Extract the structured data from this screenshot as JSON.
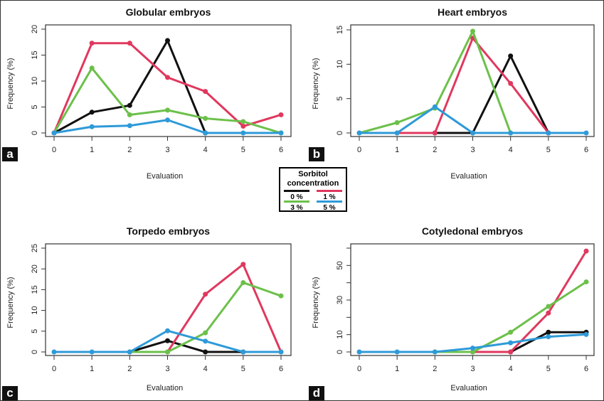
{
  "legend": {
    "title": "Sorbitol concentration",
    "items": [
      "0 %",
      "1 %",
      "3 %",
      "5 %"
    ]
  },
  "colors": {
    "0 %": "#111111",
    "1 %": "#e0385e",
    "3 %": "#6cc04a",
    "5 %": "#2e9ad8"
  },
  "chart_data": [
    {
      "type": "line",
      "panel": "a",
      "title": "Globular embryos",
      "xlabel": "Evaluation",
      "ylabel": "Frequency (%)",
      "x": [
        0,
        1,
        2,
        3,
        4,
        5,
        6
      ],
      "ylim": [
        0,
        20
      ],
      "yticks": [
        0,
        5,
        10,
        15,
        20
      ],
      "ytick_labels": [
        "0",
        "5",
        "10",
        "15",
        "20"
      ],
      "grid": false,
      "series": [
        {
          "name": "0 %",
          "values": [
            0,
            4,
            5.3,
            17.8,
            0,
            null,
            null
          ]
        },
        {
          "name": "1 %",
          "values": [
            0,
            17.3,
            17.3,
            10.7,
            8,
            1.3,
            3.5
          ]
        },
        {
          "name": "3 %",
          "values": [
            0,
            12.5,
            3.5,
            4.4,
            2.8,
            2.2,
            0
          ]
        },
        {
          "name": "5 %",
          "values": [
            0,
            1.2,
            1.4,
            2.5,
            0,
            0,
            0
          ]
        }
      ]
    },
    {
      "type": "line",
      "panel": "b",
      "title": "Heart embryos",
      "xlabel": "Evaluation",
      "ylabel": "Frequency (%)",
      "x": [
        0,
        1,
        2,
        3,
        4,
        5,
        6
      ],
      "ylim": [
        0,
        15
      ],
      "yticks": [
        0,
        5,
        10,
        15
      ],
      "ytick_labels": [
        "0",
        "5",
        "10",
        "15"
      ],
      "grid": false,
      "series": [
        {
          "name": "0 %",
          "values": [
            null,
            null,
            0,
            0,
            11.2,
            0,
            null
          ]
        },
        {
          "name": "1 %",
          "values": [
            null,
            0,
            0,
            13.8,
            7.2,
            0,
            null
          ]
        },
        {
          "name": "3 %",
          "values": [
            0,
            1.5,
            3.6,
            14.8,
            0,
            null,
            null
          ]
        },
        {
          "name": "5 %",
          "values": [
            0,
            0,
            3.8,
            0,
            0,
            0,
            0
          ]
        }
      ]
    },
    {
      "type": "line",
      "panel": "c",
      "title": "Torpedo embryos",
      "xlabel": "Evaluation",
      "ylabel": "Frequency (%)",
      "x": [
        0,
        1,
        2,
        3,
        4,
        5,
        6
      ],
      "ylim": [
        0,
        25
      ],
      "yticks": [
        0,
        5,
        10,
        15,
        20,
        25
      ],
      "ytick_labels": [
        "0",
        "5",
        "10",
        "15",
        "20",
        "25"
      ],
      "grid": false,
      "series": [
        {
          "name": "0 %",
          "values": [
            null,
            null,
            0,
            2.7,
            0,
            0,
            null
          ]
        },
        {
          "name": "1 %",
          "values": [
            null,
            null,
            null,
            0,
            13.9,
            21.1,
            0
          ]
        },
        {
          "name": "3 %",
          "values": [
            null,
            null,
            0,
            0,
            4.6,
            16.7,
            13.5
          ]
        },
        {
          "name": "5 %",
          "values": [
            0,
            0,
            0,
            5.1,
            2.6,
            0,
            0
          ]
        }
      ]
    },
    {
      "type": "line",
      "panel": "d",
      "title": "Cotyledonal embryos",
      "xlabel": "Evaluation",
      "ylabel": "Frequency (%)",
      "x": [
        0,
        1,
        2,
        3,
        4,
        5,
        6
      ],
      "ylim": [
        0,
        60
      ],
      "yticks": [
        0,
        10,
        20,
        30,
        40,
        50,
        60
      ],
      "ytick_labels": [
        "0",
        "10",
        "",
        "30",
        "",
        "50",
        ""
      ],
      "grid": false,
      "series": [
        {
          "name": "0 %",
          "values": [
            null,
            null,
            null,
            null,
            0,
            11.4,
            11.4
          ]
        },
        {
          "name": "1 %",
          "values": [
            null,
            null,
            null,
            0,
            0,
            22.5,
            58.3
          ]
        },
        {
          "name": "3 %",
          "values": [
            null,
            null,
            0,
            0,
            11.4,
            26.3,
            40.5
          ]
        },
        {
          "name": "5 %",
          "values": [
            0,
            0,
            0,
            2.2,
            5.3,
            8.8,
            10.1
          ]
        }
      ]
    }
  ]
}
